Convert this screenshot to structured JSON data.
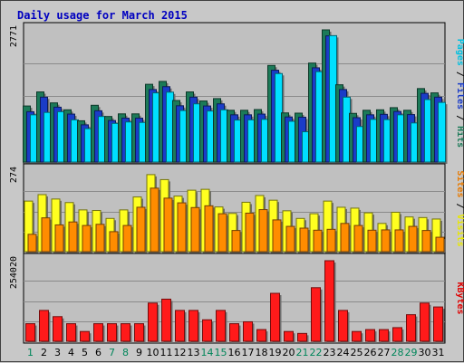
{
  "chart_data": {
    "type": "bar",
    "title": "Daily usage for March 2015",
    "categories": [
      "1",
      "2",
      "3",
      "4",
      "5",
      "6",
      "7",
      "8",
      "9",
      "10",
      "11",
      "12",
      "13",
      "14",
      "15",
      "16",
      "17",
      "18",
      "19",
      "20",
      "21",
      "22",
      "23",
      "24",
      "25",
      "26",
      "27",
      "28",
      "29",
      "30",
      "31"
    ],
    "weekend_days": [
      "1",
      "7",
      "8",
      "14",
      "15",
      "21",
      "22",
      "28",
      "29"
    ],
    "panels": [
      {
        "name": "hits-files-pages",
        "ylabel_parts": [
          "Pages",
          "Files",
          "Hits"
        ],
        "ylabel_colors": [
          "#00c0e0",
          "#1a3cc8",
          "#1c7a58"
        ],
        "max_label": "2771",
        "ylim": [
          0,
          2771
        ],
        "series": [
          {
            "name": "Hits",
            "color": "#1c7a58",
            "values": [
              1175,
              1470,
              1240,
              1095,
              865,
              1190,
              955,
              1010,
              1010,
              1630,
              1690,
              1290,
              1470,
              1280,
              1330,
              1085,
              1085,
              1100,
              2025,
              1030,
              1025,
              2075,
              2771,
              1620,
              1020,
              1085,
              1095,
              1140,
              1085,
              1540,
              1450
            ]
          },
          {
            "name": "Files",
            "color": "#1a3cc8",
            "values": [
              1055,
              1360,
              1150,
              1005,
              780,
              1075,
              870,
              920,
              920,
              1520,
              1580,
              1180,
              1360,
              1175,
              1220,
              990,
              990,
              1005,
              1925,
              945,
              940,
              1975,
              2645,
              1520,
              930,
              990,
              1000,
              1060,
              995,
              1440,
              1360
            ]
          },
          {
            "name": "Pages",
            "color": "#00e0ff",
            "values": [
              990,
              1040,
              1055,
              885,
              700,
              955,
              810,
              840,
              830,
              1450,
              1465,
              1080,
              1220,
              1070,
              1095,
              880,
              885,
              895,
              1855,
              855,
              635,
              1895,
              2650,
              1360,
              745,
              895,
              890,
              990,
              820,
              1310,
              1250
            ]
          }
        ]
      },
      {
        "name": "visits-sites",
        "ylabel_parts": [
          "Sites",
          "Visits"
        ],
        "ylabel_colors": [
          "#e87a00",
          "#e8e800"
        ],
        "max_label": "274",
        "ylim": [
          0,
          274
        ],
        "series": [
          {
            "name": "Visits",
            "color": "#ffff20",
            "values": [
              172,
              194,
              179,
              167,
              142,
              140,
              113,
              142,
              186,
              262,
              245,
              189,
              209,
              212,
              152,
              130,
              168,
              191,
              175,
              139,
              113,
              129,
              172,
              151,
              148,
              132,
              96,
              134,
              118,
              116,
              111
            ]
          },
          {
            "name": "Sites",
            "color": "#ff8c00",
            "values": [
              59,
              115,
              91,
              101,
              89,
              93,
              68,
              89,
              151,
              216,
              182,
              166,
              150,
              156,
              129,
              72,
              131,
              143,
              108,
              86,
              80,
              73,
              76,
              96,
              89,
              73,
              74,
              74,
              86,
              72,
              49
            ]
          }
        ]
      },
      {
        "name": "kbytes",
        "ylabel_parts": [
          "KBytes"
        ],
        "ylabel_colors": [
          "#e00000"
        ],
        "max_label": "254020",
        "ylim": [
          0,
          254020
        ],
        "series": [
          {
            "name": "KBytes",
            "color": "#ff1a1a",
            "values": [
              55400,
              97300,
              77700,
              55400,
              30800,
              55400,
              55400,
              55400,
              55400,
              120500,
              132800,
              97300,
              97300,
              67700,
              97300,
              55400,
              61500,
              36900,
              151200,
              30800,
              24700,
              169000,
              254020,
              97300,
              30800,
              36900,
              36900,
              43000,
              83800,
              120500,
              108200
            ]
          }
        ]
      }
    ]
  }
}
